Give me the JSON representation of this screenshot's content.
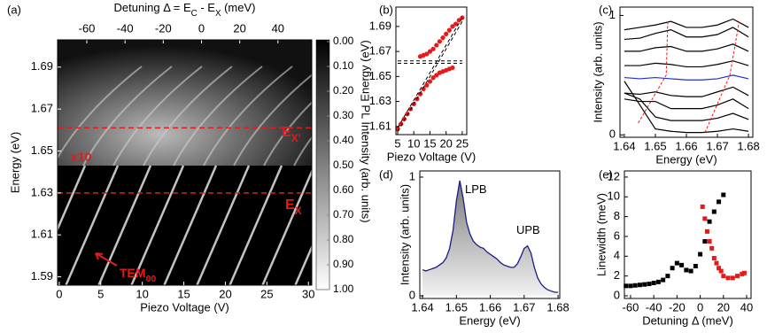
{
  "chart_data": [
    {
      "type": "heatmap",
      "panel_label": "(a)",
      "xlabel": "Piezo Voltage (V)",
      "ylabel": "Energy (eV)",
      "x2label": [
        {
          "text": "Detuning Δ = E"
        },
        {
          "text": "C",
          "sub": true
        },
        {
          "text": " - E"
        },
        {
          "text": "X",
          "sub": true
        },
        {
          "text": " (meV)"
        }
      ],
      "xlim": [
        -0.2,
        30.4
      ],
      "xticks": [
        0,
        5,
        10,
        15,
        20,
        25,
        30
      ],
      "x2lim": [
        -75.3,
        57.7
      ],
      "x2ticks": [
        -60,
        -40,
        -20,
        0,
        20,
        40
      ],
      "ylim": [
        1.586,
        1.703
      ],
      "yticks": [
        1.59,
        1.61,
        1.63,
        1.65,
        1.67,
        1.69
      ],
      "clabel": "PL Intensity (arb. units)",
      "clim": [
        -0.007,
        1.0
      ],
      "cticks": [
        {
          "value": 0,
          "label": "0.00"
        },
        {
          "value": 0.1,
          "label": "0.10"
        },
        {
          "value": 0.2,
          "label": "0.20"
        },
        {
          "value": 0.3,
          "label": "0.30"
        },
        {
          "value": 0.4,
          "label": "0.40"
        },
        {
          "value": 0.5,
          "label": "0.50"
        },
        {
          "value": 0.6,
          "label": "0.60"
        },
        {
          "value": 0.7,
          "label": "0.70"
        },
        {
          "value": 0.8,
          "label": "0.80"
        },
        {
          "value": 0.9,
          "label": "0.90"
        },
        {
          "value": 1,
          "label": "1.00"
        }
      ],
      "hlines": [
        1.661,
        1.63
      ],
      "hline_color": "#e8191a",
      "annotations": [
        [
          {
            "text": "E"
          },
          {
            "text": "X'",
            "sub": true
          }
        ],
        [
          {
            "text": "E"
          },
          {
            "text": "X",
            "sub": true
          }
        ],
        [
          {
            "text": "x10"
          }
        ],
        [
          {
            "text": "TEM"
          },
          {
            "text": "00",
            "sub": true
          }
        ]
      ]
    },
    {
      "type": "scatter",
      "panel_label": "(b)",
      "xlabel": "Piezo Voltage (V)",
      "ylabel": "Energy (eV)",
      "xlim": [
        4.45,
        26.4
      ],
      "xticks": [
        5,
        10,
        15,
        20,
        25
      ],
      "ylim": [
        1.6035,
        1.7055
      ],
      "yticks": [
        1.61,
        1.63,
        1.65,
        1.67,
        1.69
      ],
      "series": [
        {
          "color": "#e8191a",
          "x": [
            12,
            13,
            14,
            15,
            16,
            17,
            18,
            19,
            20,
            21,
            22,
            23,
            24,
            25
          ],
          "values": [
            1.666,
            1.667,
            1.668,
            1.67,
            1.672,
            1.675,
            1.678,
            1.681,
            1.684,
            1.687,
            1.69,
            1.692,
            1.695,
            1.697
          ]
        },
        {
          "color": "#e8191a",
          "x": [
            5,
            6,
            7,
            8,
            9,
            10,
            11,
            12,
            13,
            14,
            15,
            16,
            17,
            18,
            19,
            20,
            21,
            22
          ],
          "values": [
            1.608,
            1.612,
            1.616,
            1.62,
            1.624,
            1.628,
            1.632,
            1.636,
            1.64,
            1.643,
            1.646,
            1.649,
            1.651,
            1.653,
            1.654,
            1.655,
            1.656,
            1.657
          ]
        }
      ],
      "guides": [
        {
          "x": [
            5,
            25
          ],
          "y": [
            1.6625,
            1.6625
          ]
        },
        {
          "x": [
            5,
            25
          ],
          "y": [
            1.6605,
            1.6605
          ]
        },
        {
          "x": [
            5,
            25
          ],
          "y": [
            1.606,
            1.694
          ]
        },
        {
          "x": [
            5,
            25
          ],
          "y": [
            1.609,
            1.697
          ]
        }
      ]
    },
    {
      "type": "line",
      "panel_label": "(c)",
      "xlabel": "Energy (eV)",
      "ylabel": "Intensity (arb. units)",
      "xlim": [
        1.6386,
        1.6814
      ],
      "xticks": [
        1.64,
        1.65,
        1.66,
        1.67,
        1.68
      ],
      "ylim": [
        -0.02,
        1.07
      ],
      "yticks": [
        0,
        1
      ],
      "x": [
        1.64,
        1.645,
        1.65,
        1.655,
        1.66,
        1.665,
        1.67,
        1.675,
        1.68
      ],
      "series": [
        {
          "color": "#000000",
          "values": [
            0.45,
            0.25,
            0.05,
            0.03,
            0.02,
            0.02,
            0.03,
            0.05,
            0.03
          ]
        },
        {
          "color": "#000000",
          "values": [
            0.35,
            0.3,
            0.15,
            0.12,
            0.12,
            0.12,
            0.14,
            0.18,
            0.13
          ]
        },
        {
          "color": "#000000",
          "values": [
            0.3,
            0.28,
            0.28,
            0.22,
            0.22,
            0.22,
            0.25,
            0.3,
            0.22
          ]
        },
        {
          "color": "#000000",
          "values": [
            0.35,
            0.34,
            0.36,
            0.33,
            0.32,
            0.32,
            0.36,
            0.4,
            0.33
          ]
        },
        {
          "color": "#1f2fd0",
          "values": [
            0.48,
            0.47,
            0.48,
            0.47,
            0.46,
            0.46,
            0.47,
            0.5,
            0.47
          ]
        },
        {
          "color": "#000000",
          "values": [
            0.58,
            0.58,
            0.6,
            0.59,
            0.57,
            0.57,
            0.59,
            0.62,
            0.58
          ]
        },
        {
          "color": "#000000",
          "values": [
            0.7,
            0.7,
            0.73,
            0.74,
            0.7,
            0.7,
            0.72,
            0.76,
            0.7
          ]
        },
        {
          "color": "#000000",
          "values": [
            0.8,
            0.81,
            0.85,
            0.88,
            0.82,
            0.82,
            0.84,
            0.9,
            0.82
          ]
        },
        {
          "color": "#000000",
          "values": [
            0.88,
            0.9,
            0.92,
            0.95,
            0.9,
            0.9,
            0.92,
            0.97,
            0.9
          ]
        }
      ],
      "guides": [
        {
          "x": [
            1.6445,
            1.6535,
            1.654
          ],
          "y": [
            0.1,
            0.5,
            0.95
          ]
        },
        {
          "x": [
            1.666,
            1.674,
            1.677
          ],
          "y": [
            0.02,
            0.5,
            0.95
          ]
        }
      ]
    },
    {
      "type": "area",
      "panel_label": "(d)",
      "xlabel": "Energy (eV)",
      "ylabel": "Intensity (arb. units)",
      "color": "#1a1a8c",
      "xlim": [
        1.6392,
        1.6805
      ],
      "xticks": [
        1.64,
        1.65,
        1.66,
        1.67,
        1.68
      ],
      "ylim": [
        -0.022,
        1.052
      ],
      "yticks": [
        0,
        1
      ],
      "x": [
        1.64,
        1.641,
        1.642,
        1.643,
        1.644,
        1.645,
        1.646,
        1.647,
        1.648,
        1.649,
        1.65,
        1.651,
        1.652,
        1.653,
        1.654,
        1.655,
        1.656,
        1.657,
        1.658,
        1.659,
        1.66,
        1.661,
        1.662,
        1.663,
        1.664,
        1.665,
        1.666,
        1.667,
        1.668,
        1.669,
        1.67,
        1.671,
        1.672,
        1.673,
        1.674,
        1.675,
        1.676,
        1.677,
        1.678,
        1.679,
        1.68
      ],
      "values": [
        0.22,
        0.21,
        0.22,
        0.23,
        0.24,
        0.26,
        0.28,
        0.32,
        0.4,
        0.55,
        0.8,
        0.97,
        0.82,
        0.62,
        0.52,
        0.46,
        0.43,
        0.41,
        0.4,
        0.37,
        0.35,
        0.33,
        0.31,
        0.28,
        0.26,
        0.25,
        0.24,
        0.24,
        0.27,
        0.33,
        0.4,
        0.42,
        0.36,
        0.24,
        0.15,
        0.1,
        0.07,
        0.05,
        0.04,
        0.03,
        0.03
      ],
      "annotations": [
        [
          {
            "text": "LPB"
          }
        ],
        [
          {
            "text": "UPB"
          }
        ]
      ]
    },
    {
      "type": "scatter",
      "panel_label": "(e)",
      "xlabel": "Detuning Δ (meV)",
      "ylabel": "Linewidth (meV)",
      "xlim": [
        -65.3,
        43.8
      ],
      "xticks": [
        -60,
        -40,
        -20,
        0,
        20,
        40
      ],
      "ylim": [
        -0.27,
        12.62
      ],
      "yticks": [
        0,
        2,
        4,
        6,
        8,
        10,
        12
      ],
      "marker": "square",
      "series": [
        {
          "color": "#000000",
          "x": [
            -64,
            -60,
            -56,
            -52,
            -48,
            -44,
            -40,
            -36,
            -32,
            -28,
            -24,
            -20,
            -16,
            -12,
            -8,
            -4,
            0,
            4,
            8,
            12,
            16,
            20
          ],
          "values": [
            1.0,
            1.0,
            1.05,
            1.1,
            1.15,
            1.2,
            1.3,
            1.4,
            1.6,
            2.0,
            2.8,
            3.3,
            3.1,
            2.6,
            2.5,
            3.0,
            4.2,
            5.5,
            7.5,
            8.5,
            9.5,
            10.2
          ]
        },
        {
          "color": "#e8191a",
          "x": [
            2,
            4,
            6,
            8,
            10,
            12,
            14,
            16,
            18,
            20,
            24,
            28,
            32,
            36,
            38
          ],
          "values": [
            9.0,
            7.8,
            6.5,
            5.5,
            4.8,
            3.8,
            3.3,
            2.8,
            2.5,
            2.0,
            1.8,
            1.8,
            2.0,
            2.2,
            2.3
          ]
        }
      ]
    }
  ]
}
